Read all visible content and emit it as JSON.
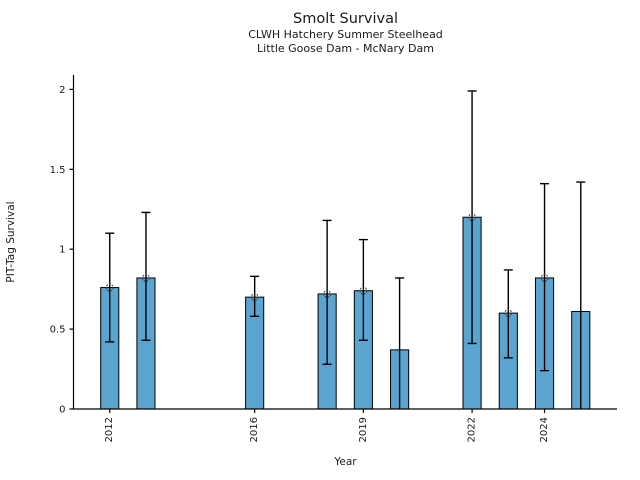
{
  "chart_data": {
    "type": "bar",
    "title": "Smolt Survival",
    "subtitle_lines": [
      "CLWH Hatchery Summer Steelhead",
      "Little Goose Dam - McNary Dam"
    ],
    "xlabel": "Year",
    "ylabel": "PIT-Tag Survival",
    "x": [
      2012,
      2013,
      2016,
      2018,
      2019,
      2020,
      2022,
      2023,
      2024,
      2025
    ],
    "values": [
      0.76,
      0.82,
      0.7,
      0.72,
      0.74,
      0.37,
      1.2,
      0.6,
      0.82,
      0.61
    ],
    "ci_low": [
      0.42,
      0.43,
      0.58,
      0.28,
      0.43,
      0.0,
      0.41,
      0.32,
      0.24,
      0.0
    ],
    "ci_high": [
      1.1,
      1.23,
      0.83,
      1.18,
      1.06,
      0.82,
      1.99,
      0.87,
      1.41,
      1.42
    ],
    "point_marker": [
      true,
      true,
      true,
      true,
      true,
      false,
      true,
      true,
      true,
      false
    ],
    "xticks": {
      "values": [
        2012,
        2016,
        2019,
        2022,
        2024
      ],
      "labels": [
        "2012",
        "2016",
        "2019",
        "2022",
        "2024"
      ]
    },
    "yticks": {
      "values": [
        0,
        0.5,
        1,
        1.5,
        2
      ],
      "labels": [
        "0",
        "0.5",
        "1",
        "1.5",
        "2"
      ]
    },
    "xlim": [
      2011,
      2026
    ],
    "ylim": [
      0,
      2.09
    ],
    "bar_width_years": 0.5,
    "grid": false,
    "legend": null,
    "colors": {
      "bar_fill": "#5BA4D0",
      "bar_edge": "#000000",
      "error_bar": "#000000",
      "marker_edge": "#3A3A3A",
      "axis": "#000000",
      "text": "#1A1A1A"
    }
  }
}
